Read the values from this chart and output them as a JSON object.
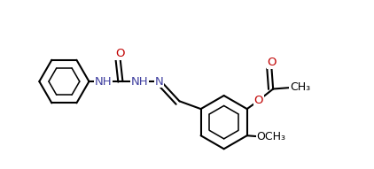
{
  "bg_color": "#ffffff",
  "line_color": "#000000",
  "n_color": "#4040a0",
  "o_color": "#c00000",
  "figsize": [
    4.22,
    1.91
  ],
  "dpi": 100,
  "font_size": 9.5,
  "bond_lw": 1.5,
  "xlim": [
    0,
    1
  ],
  "ylim": [
    0,
    0.55
  ]
}
